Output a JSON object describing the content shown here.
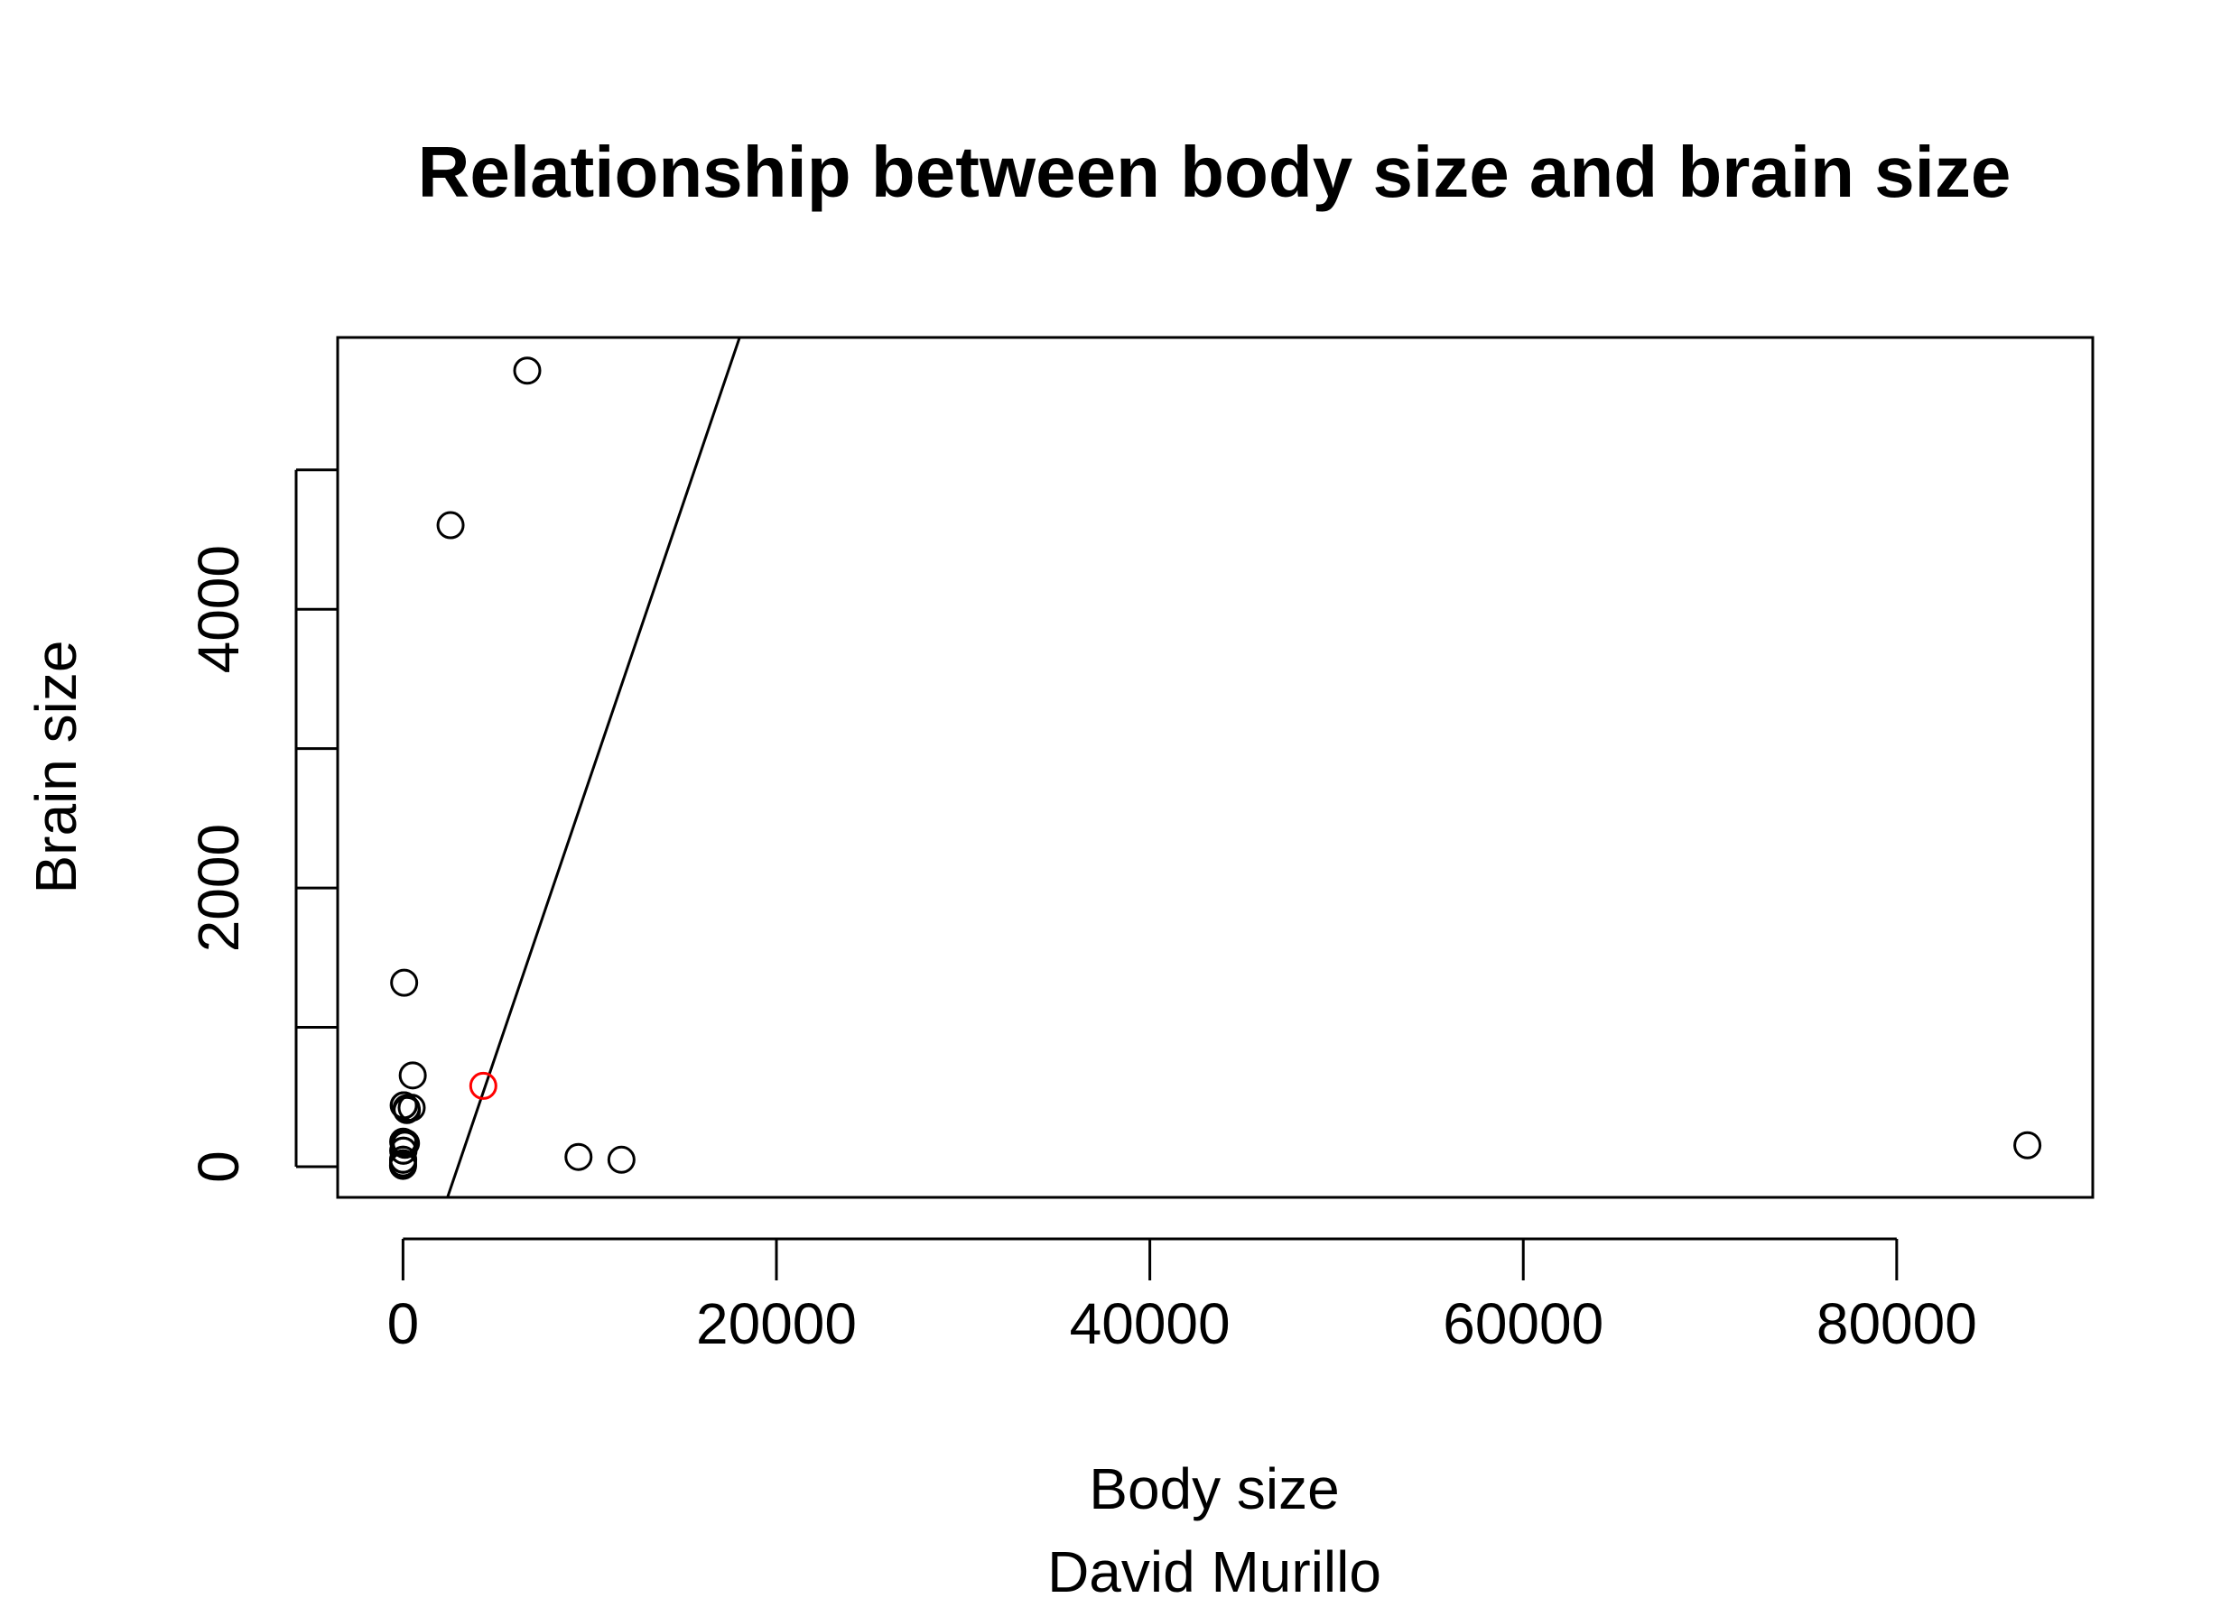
{
  "chart_data": {
    "type": "scatter",
    "title": "Relationship between body size and brain size",
    "xlabel": "Body size",
    "ylabel": "Brain size",
    "subtitle": "David Murillo",
    "xlim": [
      -3500,
      90500
    ],
    "ylim": [
      -220,
      5950
    ],
    "x_ticks": [
      0,
      20000,
      40000,
      60000,
      80000
    ],
    "y_ticks": [
      0,
      1000,
      2000,
      3000,
      4000,
      5000
    ],
    "x_tick_labels": [
      "0",
      "20000",
      "40000",
      "60000",
      "80000"
    ],
    "y_tick_labels": [
      "0",
      "",
      "2000",
      "",
      "4000",
      ""
    ],
    "grid": false,
    "point_color": "#000000",
    "highlight_color": "#ff0000",
    "fit_line": {
      "slope": 0.3944,
      "intercept": -1160,
      "color": "#000000"
    },
    "points": [
      {
        "x": 6654,
        "y": 5712
      },
      {
        "x": 2547,
        "y": 4603
      },
      {
        "x": 62,
        "y": 1320
      },
      {
        "x": 521,
        "y": 655
      },
      {
        "x": 465,
        "y": 423
      },
      {
        "x": 187,
        "y": 419
      },
      {
        "x": 35,
        "y": 440
      },
      {
        "x": 10,
        "y": 180
      },
      {
        "x": 207,
        "y": 406
      },
      {
        "x": 52,
        "y": 440
      },
      {
        "x": 160,
        "y": 169
      },
      {
        "x": 27,
        "y": 115
      },
      {
        "x": 3,
        "y": 25
      },
      {
        "x": 1,
        "y": 6
      },
      {
        "x": 10,
        "y": 115
      },
      {
        "x": 100,
        "y": 157
      },
      {
        "x": 55,
        "y": 175
      },
      {
        "x": 10,
        "y": 50
      },
      {
        "x": 1,
        "y": 12
      },
      {
        "x": 4,
        "y": 50
      },
      {
        "x": 9400,
        "y": 70
      },
      {
        "x": 11700,
        "y": 50
      },
      {
        "x": 87000,
        "y": 154
      }
    ],
    "highlighted_points": [
      {
        "x": 4300,
        "y": 580
      }
    ]
  }
}
